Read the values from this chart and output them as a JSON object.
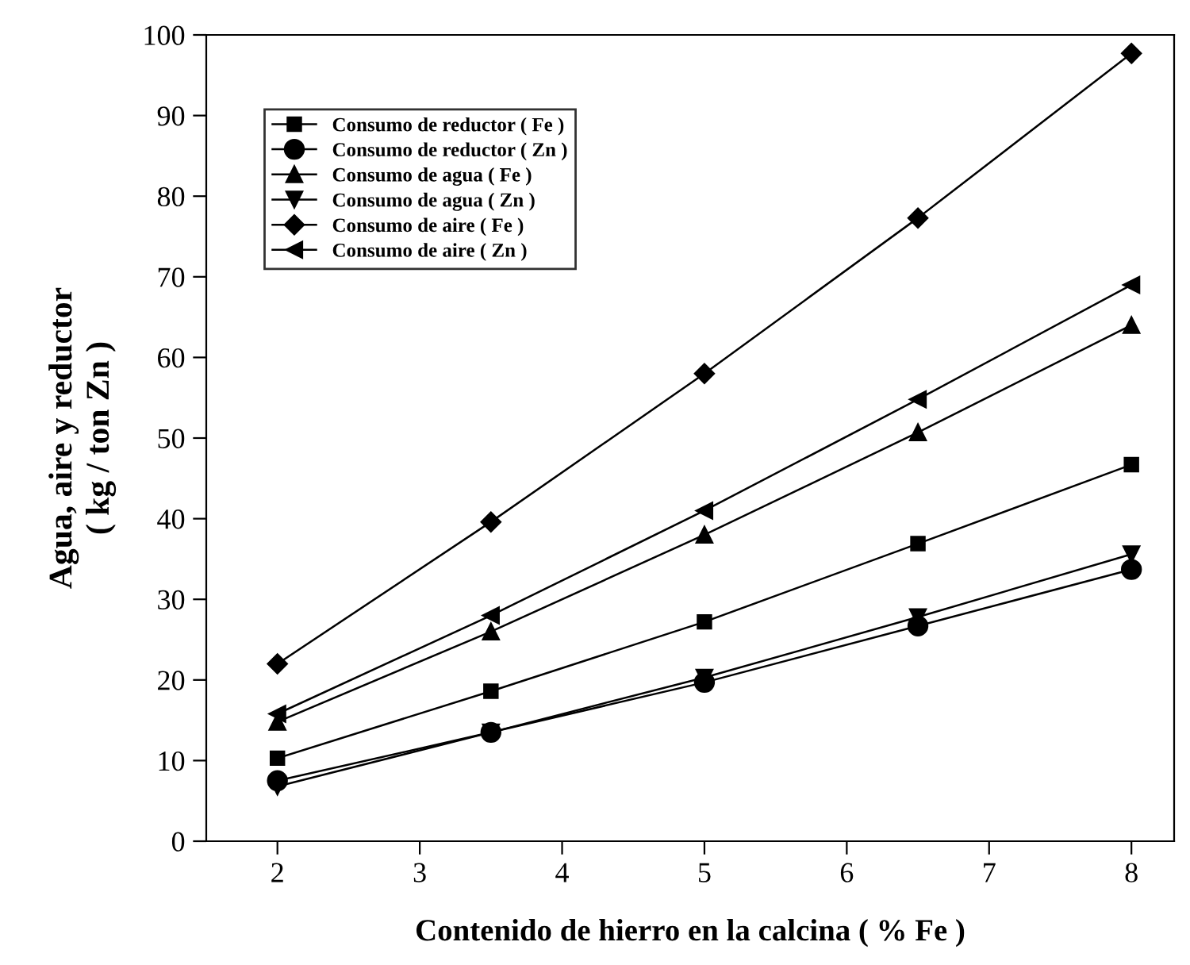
{
  "chart_data": {
    "type": "line",
    "xlabel": "Contenido de hierro en la calcina ( % Fe )",
    "ylabel": "Agua, aire y reductor\n( kg / ton Zn )",
    "x": [
      2,
      3.5,
      5,
      6.5,
      8
    ],
    "xlim": [
      1.5,
      8.3
    ],
    "xticks": [
      2,
      3,
      4,
      5,
      6,
      7,
      8
    ],
    "ylim": [
      0,
      100
    ],
    "yticks": [
      0,
      10,
      20,
      30,
      40,
      50,
      60,
      70,
      80,
      90,
      100
    ],
    "grid": false,
    "legend": "top left",
    "line_style": "solid",
    "series": [
      {
        "name": "Consumo de reductor ( Fe )",
        "color": "#000000",
        "marker": "square",
        "values": [
          10.3,
          18.6,
          27.2,
          36.9,
          46.7
        ]
      },
      {
        "name": "Consumo de reductor ( Zn )",
        "color": "#000000",
        "marker": "circle",
        "values": [
          7.5,
          13.5,
          19.7,
          26.7,
          33.7
        ]
      },
      {
        "name": "Consumo de agua ( Fe )",
        "color": "#000000",
        "marker": "triangle",
        "values": [
          14.8,
          26,
          38,
          50.7,
          64
        ]
      },
      {
        "name": "Consumo de agua ( Zn )",
        "color": "#000000",
        "marker": "triangle_down",
        "values": [
          6.8,
          13.5,
          20.3,
          27.8,
          35.6
        ]
      },
      {
        "name": "Consumo de aire ( Fe )",
        "color": "#000000",
        "marker": "diamond",
        "values": [
          22,
          39.6,
          58,
          77.3,
          97.7
        ]
      },
      {
        "name": "Consumo de aire ( Zn )",
        "color": "#000000",
        "marker": "triangle_left",
        "values": [
          15.8,
          28,
          41,
          54.8,
          69
        ]
      }
    ]
  }
}
